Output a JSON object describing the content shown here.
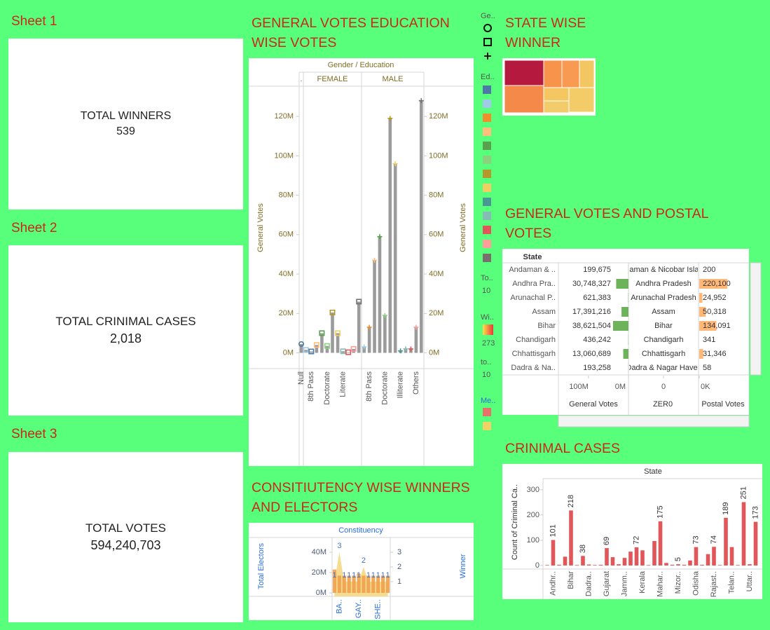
{
  "kpis": [
    {
      "sheet": "Sheet 1",
      "label": "TOTAL WINNERS",
      "value": "539"
    },
    {
      "sheet": "Sheet 2",
      "label": "TOTAL CRINIMAL CASES",
      "value": "2,018"
    },
    {
      "sheet": "Sheet 3",
      "label": "TOTAL VOTES",
      "value": "594,240,703"
    }
  ],
  "legend": {
    "gender_title": "Ge..",
    "gender_shapes": [
      "circle",
      "square",
      "plus"
    ],
    "education_title": "Ed..",
    "education_colors": [
      "#4e79a7",
      "#a0cbe8",
      "#f28e2b",
      "#ffbe7d",
      "#59a14f",
      "#8cd17d",
      "#b6992d",
      "#f1ce63",
      "#499894",
      "#86bcb6",
      "#e15759",
      "#ff9d9a",
      "#79706e"
    ],
    "total_title": "To..",
    "total_value": "10",
    "winner_title": "Wi..",
    "winner_value": "273",
    "winner_gradient": [
      "#fde04a",
      "#e8393a"
    ],
    "total2_title": "to..",
    "total2_value": "10",
    "measure_title": "Me..",
    "measure_colors": [
      "#e8706b",
      "#f2d165"
    ]
  },
  "chart_data": [
    {
      "type": "lollipop",
      "title": "GENERAL VOTES EDUCATION WISE VOTES",
      "header": "Gender / Education",
      "y_label": "General Votes",
      "y2_label": "General Votes",
      "bar_color": "#9b9b9b",
      "ylim": [
        -8000000,
        135000000
      ],
      "yticks": [
        {
          "value": 0,
          "label": "0M"
        },
        {
          "value": 20000000,
          "label": "20M"
        },
        {
          "value": 40000000,
          "label": "40M"
        },
        {
          "value": 60000000,
          "label": "60M"
        },
        {
          "value": 80000000,
          "label": "80M"
        },
        {
          "value": 100000000,
          "label": "100M"
        },
        {
          "value": 120000000,
          "label": "120M"
        }
      ],
      "y2lim": [
        -8000000,
        135000000
      ],
      "y2ticks": [
        {
          "value": 0,
          "label": "0M"
        },
        {
          "value": 20000000,
          "label": "20M"
        },
        {
          "value": 40000000,
          "label": "40M"
        },
        {
          "value": 60000000,
          "label": "60M"
        },
        {
          "value": 80000000,
          "label": "80M"
        },
        {
          "value": 100000000,
          "label": "100M"
        },
        {
          "value": 120000000,
          "label": "120M"
        }
      ],
      "panes": [
        {
          "name": ".",
          "marker": "circle",
          "categories": [
            "Null"
          ],
          "values": [
            4500000
          ],
          "marker_colors": [
            "#4e79a7"
          ]
        },
        {
          "name": "FEMALE",
          "marker": "square",
          "categories": [
            null,
            "8th Pass",
            null,
            null,
            "Doctorate",
            null,
            null,
            "Literate",
            null,
            null,
            null
          ],
          "values": [
            1500000,
            700000,
            4000000,
            10000000,
            3500000,
            20500000,
            10000000,
            800000,
            300000,
            2000000,
            26000000
          ],
          "marker_colors": [
            "#a0cbe8",
            "#4e79a7",
            "#ffbe7d",
            "#59a14f",
            "#8cd17d",
            "#b6992d",
            "#f1ce63",
            "#86bcb6",
            "#e15759",
            "#ff9d9a",
            "#79706e"
          ]
        },
        {
          "name": "MALE",
          "marker": "plus",
          "categories": [
            null,
            "8th Pass",
            null,
            null,
            "Doctorate",
            null,
            null,
            "Illiterate",
            null,
            null,
            "Others",
            null
          ],
          "values": [
            3000000,
            13000000,
            47000000,
            59000000,
            19000000,
            119000000,
            96000000,
            1000000,
            2000000,
            2000000,
            13000000,
            128000000
          ],
          "marker_colors": [
            "#a0cbe8",
            "#f28e2b",
            "#ffbe7d",
            "#59a14f",
            "#8cd17d",
            "#b6992d",
            "#f1ce63",
            "#499894",
            "#86bcb6",
            "#e15759",
            "#ff9d9a",
            "#79706e"
          ]
        }
      ]
    },
    {
      "type": "treemap",
      "title": "STATE WISE WINNER",
      "values": [
        2016,
        2184,
        1014,
        975,
        819,
        684,
        1260,
        612
      ],
      "colors": [
        "#b5193d",
        "#f5894a",
        "#f8934c",
        "#f89a52",
        "#f2c660",
        "#f5c761",
        "#f3cb67",
        "#f2cc6a"
      ]
    },
    {
      "type": "table",
      "title": "GENERAL VOTES AND POSTAL VOTES",
      "row_header": "State",
      "states": [
        "Andaman & ..",
        "Andhra Pra..",
        "Arunachal P..",
        "Assam",
        "Bihar",
        "Chandigarh",
        "Chhattisgarh",
        "Dadra & Na.."
      ],
      "general_votes": [
        199675,
        30748327,
        621383,
        17391216,
        38621504,
        436242,
        13060689,
        193258
      ],
      "general_value_labels": [
        "199,675",
        "30,748,327",
        "621,383",
        "17,391,216",
        "38,621,504",
        "436,242",
        "13,060,689",
        "193,258"
      ],
      "zero_states": [
        "Andaman & Nicobar Islands",
        "Andhra Pradesh",
        "Arunachal Pradesh",
        "Assam",
        "Bihar",
        "Chandigarh",
        "Chhattisgarh",
        "Dadra & Nagar Haveli"
      ],
      "postal_votes": [
        200,
        220100,
        24952,
        50318,
        134091,
        341,
        31346,
        58
      ],
      "postal_value_labels": [
        "200",
        "220,100",
        "24,952",
        "50,318",
        "134,091",
        "341",
        "31,346",
        "58"
      ],
      "columns": [
        "General Votes",
        "ZER0",
        "Postal Votes"
      ],
      "general_xlim": [
        0,
        175000000
      ],
      "general_xticks": [
        {
          "value": 100000000,
          "label": "100M"
        },
        {
          "value": 0,
          "label": "0M"
        }
      ],
      "zero_xlim": [
        -1,
        1
      ],
      "zero_xticks": [
        0
      ],
      "postal_xlim": [
        0,
        390000
      ],
      "postal_xticks": [
        {
          "value": 0,
          "label": "0K"
        }
      ],
      "general_color": "#6cb35a",
      "postal_color": "#ffb878"
    },
    {
      "type": "combo",
      "title": "CONSITIUTENCY WISE WINNERS AND ELECTORS",
      "header": "Constituency",
      "categories": [
        null,
        "BA..",
        null,
        null,
        null,
        "GAY..",
        null,
        null,
        null,
        "SHE..",
        null,
        null
      ],
      "series": [
        {
          "name": "Total Electors",
          "color": "#f0a04b",
          "values": [
            23000000,
            17000000,
            17000000,
            17000000,
            17000000,
            19000000,
            17000000,
            17000000,
            17000000,
            17000000,
            17000000,
            17000000
          ]
        },
        {
          "name": "Winner",
          "axis": "y2",
          "color": "#f5d67a",
          "values": [
            1,
            3,
            1,
            1,
            1,
            1,
            2,
            1,
            1,
            1,
            1,
            1
          ]
        }
      ],
      "ylim": [
        -3400000,
        54500000
      ],
      "yticks": [
        {
          "value": 0,
          "label": "0M"
        },
        {
          "value": 20000000,
          "label": "20M"
        },
        {
          "value": 40000000,
          "label": "40M"
        }
      ],
      "y2lim": [
        0,
        4
      ],
      "y2ticks": [
        1,
        2,
        3
      ]
    },
    {
      "type": "bar",
      "title": "CRINIMAL CASES",
      "header": "State",
      "y_label": "Count of Criminal Ca..",
      "categories": [
        null,
        "Andhr..",
        null,
        null,
        "Bihar",
        null,
        null,
        "Dadra..",
        null,
        null,
        "Gujarat",
        null,
        null,
        "Jamm..",
        null,
        null,
        "Kerala",
        null,
        null,
        "Mahar..",
        null,
        null,
        "Mizor..",
        null,
        null,
        "Odisha",
        null,
        null,
        "Rajast..",
        null,
        null,
        "Telan..",
        null,
        null,
        "Uttar..",
        null
      ],
      "values": [
        2,
        101,
        3,
        35,
        218,
        2,
        38,
        4,
        2,
        3,
        69,
        33,
        5,
        30,
        55,
        72,
        60,
        2,
        97,
        175,
        10,
        3,
        5,
        3,
        20,
        73,
        3,
        45,
        74,
        2,
        189,
        73,
        2,
        251,
        5,
        173
      ],
      "value_labels": [
        null,
        "101",
        null,
        null,
        "218",
        null,
        "38",
        null,
        null,
        null,
        "69",
        null,
        null,
        null,
        null,
        "72",
        null,
        null,
        null,
        "175",
        null,
        null,
        "5",
        null,
        null,
        "73",
        null,
        null,
        "74",
        null,
        "189",
        null,
        null,
        "251",
        null,
        "173"
      ],
      "color": "#e15759",
      "ylim": [
        -14,
        344
      ],
      "yticks": [
        0,
        100,
        200,
        300
      ]
    }
  ]
}
